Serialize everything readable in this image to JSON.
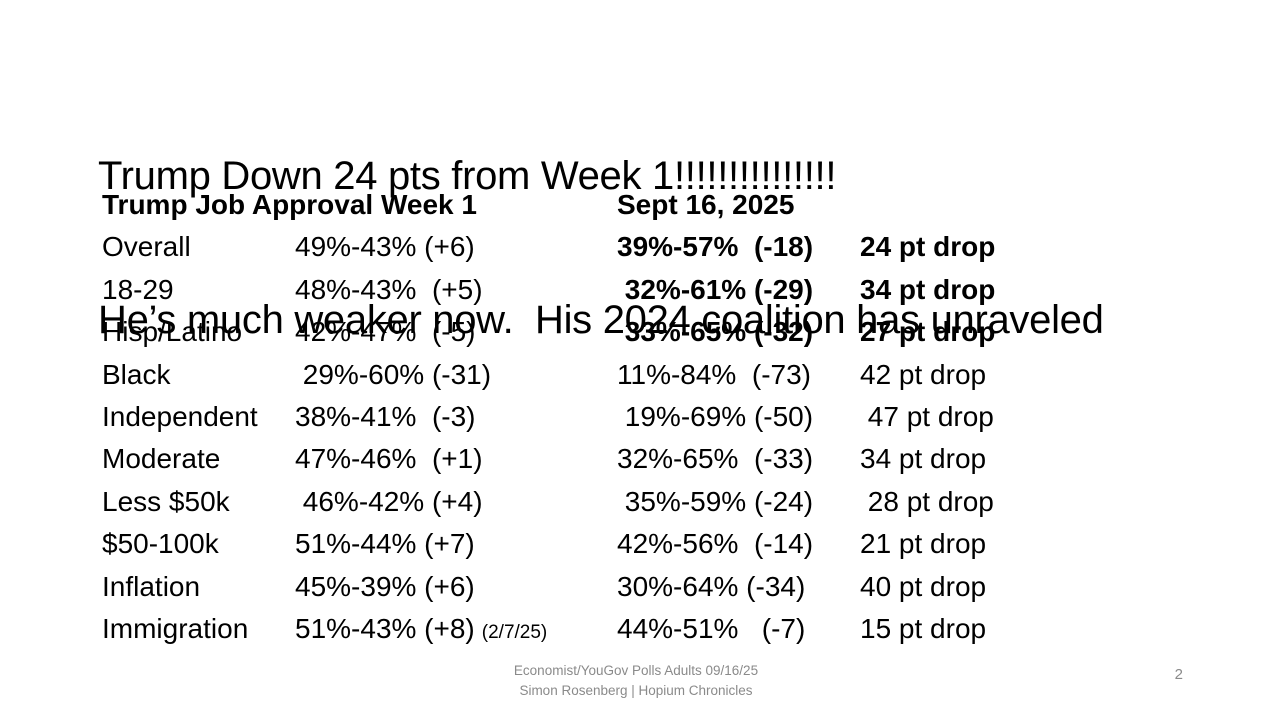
{
  "slide": {
    "title_line1": "Trump Down 24 pts from Week 1!!!!!!!!!!!!!!!",
    "title_line2": "He’s much weaker now.  His 2024 coalition has unraveled",
    "page_number": "2"
  },
  "table": {
    "header": {
      "left": "Trump Job Approval Week 1",
      "right": "Sept 16, 2025"
    },
    "rows": [
      {
        "category": "Overall",
        "week1": "49%-43% (+6)",
        "sept": "39%-57%  (-18)",
        "drop": "24 pt drop",
        "emphasis": true
      },
      {
        "category": "18-29",
        "week1": "48%-43%  (+5)",
        "sept": " 32%-61% (-29)",
        "drop": "34 pt drop",
        "emphasis": true
      },
      {
        "category": "Hisp/Latino",
        "week1": "42%-47%  (-5)",
        "sept": " 33%-65% (-32)",
        "drop": "27 pt drop",
        "emphasis": true
      },
      {
        "category": "Black",
        "week1": " 29%-60% (-31)",
        "sept": "11%-84%  (-73)",
        "drop": "42 pt drop",
        "emphasis": false
      },
      {
        "category": "Independent",
        "week1": "38%-41%  (-3)",
        "sept": " 19%-69% (-50)",
        "drop": " 47 pt drop",
        "emphasis": false
      },
      {
        "category": "Moderate",
        "week1": "47%-46%  (+1)",
        "sept": "32%-65%  (-33)",
        "drop": "34 pt drop",
        "emphasis": false
      },
      {
        "category": "Less $50k",
        "week1": " 46%-42% (+4)",
        "sept": " 35%-59% (-24)",
        "drop": " 28 pt drop",
        "emphasis": false
      },
      {
        "category": "$50-100k",
        "week1": "51%-44% (+7)",
        "sept": "42%-56%  (-14)",
        "drop": "21 pt drop",
        "emphasis": false
      },
      {
        "category": "Inflation",
        "week1": "45%-39% (+6)",
        "sept": "30%-64% (-34)",
        "drop": "40 pt drop",
        "emphasis": false
      },
      {
        "category": "Immigration",
        "week1": "51%-43% (+8)",
        "note": "(2/7/25)",
        "sept": "44%-51%   (-7)",
        "drop": "15 pt drop",
        "emphasis": false
      }
    ]
  },
  "footer": {
    "source": "Economist/YouGov Polls Adults 09/16/25",
    "author": "Simon Rosenberg | Hopium Chronicles"
  },
  "colors": {
    "background": "#ffffff",
    "text": "#000000",
    "muted": "#8a8a8a"
  }
}
